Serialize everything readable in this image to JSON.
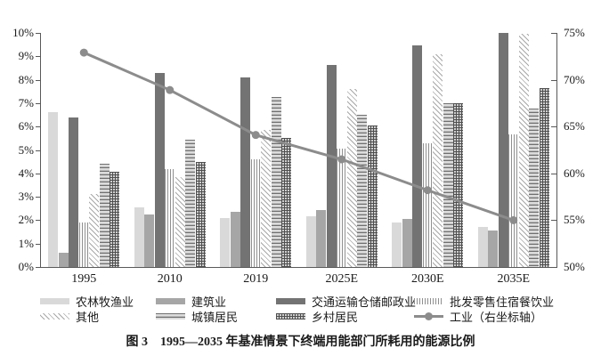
{
  "figure_title": "图 3　1995—2035 年基准情景下终端用能部门所耗用的能源比例",
  "colors": {
    "bar_light_gray": "#d9d9d9",
    "bar_medium_gray": "#a6a6a6",
    "bar_dark_gray": "#737373",
    "industry_line": "#8c8c8c",
    "axis": "#595959",
    "text": "#1a1a1a"
  },
  "chart_data": {
    "type": "bar",
    "subtype": "grouped bars with secondary-axis line",
    "categories": [
      "1995",
      "2010",
      "2019",
      "2025E",
      "2030E",
      "2035E"
    ],
    "series": [
      {
        "name": "农林牧渔业",
        "style": "solid",
        "color": "#d9d9d9",
        "pattern": "p-solid",
        "axis": "left",
        "values": [
          6.6,
          2.55,
          2.1,
          2.15,
          1.9,
          1.7
        ]
      },
      {
        "name": "建筑业",
        "style": "solid",
        "color": "#a6a6a6",
        "pattern": "p-solid",
        "axis": "left",
        "values": [
          0.6,
          2.25,
          2.35,
          2.45,
          2.05,
          1.55
        ]
      },
      {
        "name": "交通运输仓储邮政业",
        "style": "solid",
        "color": "#737373",
        "pattern": "p-solid",
        "axis": "left",
        "values": [
          6.4,
          8.3,
          8.1,
          8.65,
          9.45,
          10.0
        ]
      },
      {
        "name": "批发零售住宿餐饮业",
        "style": "vertical-lines",
        "color": "#8f8f8f",
        "pattern": "p-vlines",
        "axis": "left",
        "values": [
          1.9,
          4.2,
          4.6,
          5.05,
          5.3,
          5.65
        ]
      },
      {
        "name": "其他",
        "style": "diagonal-hatch",
        "color": "#a8a8a8",
        "pattern": "p-diag",
        "axis": "left",
        "values": [
          3.1,
          3.85,
          5.85,
          7.6,
          9.1,
          9.95
        ]
      },
      {
        "name": "城镇居民",
        "style": "horizontal-lines",
        "color": "#6f6f6f",
        "pattern": "p-hlines",
        "axis": "left",
        "values": [
          4.4,
          5.45,
          7.25,
          6.5,
          7.0,
          6.75
        ]
      },
      {
        "name": "乡村居民",
        "style": "cross-grid",
        "color": "#4f4f4f",
        "pattern": "p-grid",
        "axis": "left",
        "values": [
          4.05,
          4.5,
          5.5,
          6.05,
          7.0,
          7.65
        ]
      }
    ],
    "line_series": {
      "name": "工业（右坐标轴）",
      "axis": "right",
      "color": "#8c8c8c",
      "marker": "circle",
      "values": [
        72.9,
        68.9,
        64.1,
        61.5,
        58.2,
        55.0
      ]
    },
    "left_axis": {
      "min": 0,
      "max": 10,
      "step": 1,
      "tick_labels": [
        "0%",
        "1%",
        "2%",
        "3%",
        "4%",
        "5%",
        "6%",
        "7%",
        "8%",
        "9%",
        "10%"
      ]
    },
    "right_axis": {
      "min": 50,
      "max": 75,
      "step": 5,
      "tick_labels": [
        "50%",
        "55%",
        "60%",
        "65%",
        "70%",
        "75%"
      ]
    },
    "grid": false,
    "legend_position": "bottom",
    "legend_rows": [
      [
        "农林牧渔业",
        "建筑业",
        "交通运输仓储邮政业",
        "批发零售住宿餐饮业"
      ],
      [
        "其他",
        "城镇居民",
        "乡村居民",
        "工业（右坐标轴）"
      ]
    ]
  }
}
